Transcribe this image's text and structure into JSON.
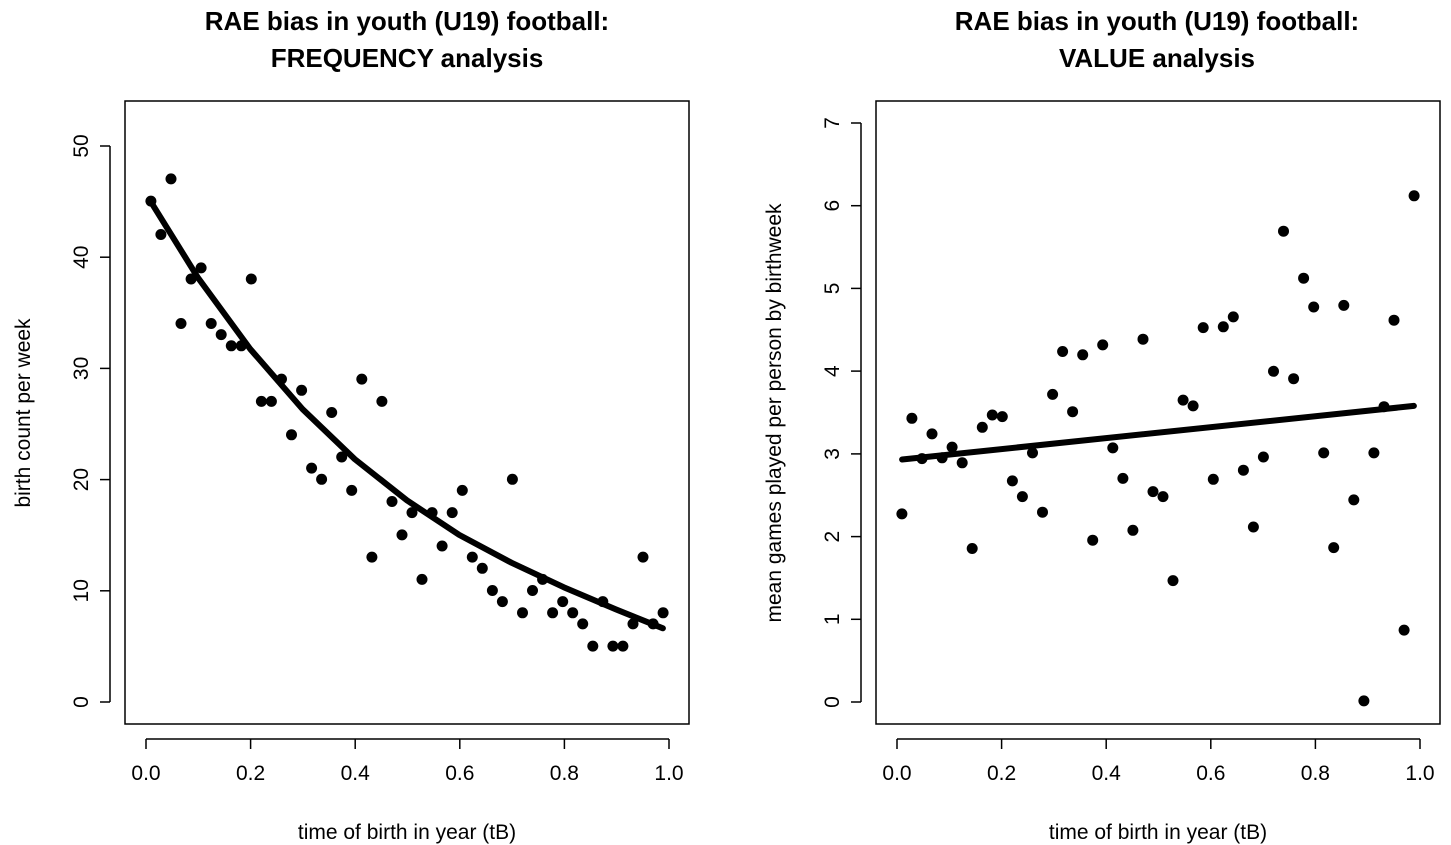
{
  "chart_data": [
    {
      "type": "scatter",
      "title": "RAE bias in youth (U19) football:",
      "subtitle": "FREQUENCY analysis",
      "xlabel": "time of birth in year (tB)",
      "ylabel": "birth count per week",
      "xlim": [
        -0.04,
        1.04
      ],
      "ylim": [
        -2,
        54
      ],
      "xticks": [
        "0.0",
        "0.2",
        "0.4",
        "0.6",
        "0.8",
        "1.0"
      ],
      "yticks": [
        "0",
        "10",
        "20",
        "30",
        "40",
        "50"
      ],
      "xtick_values": [
        0,
        0.2,
        0.4,
        0.6,
        0.8,
        1.0
      ],
      "ytick_values": [
        0,
        10,
        20,
        30,
        40,
        50
      ],
      "grid": false,
      "series": [
        {
          "kind": "points",
          "x": [
            0.0096,
            0.0288,
            0.0481,
            0.0673,
            0.0865,
            0.1058,
            0.125,
            0.1442,
            0.1635,
            0.1827,
            0.2019,
            0.2212,
            0.2404,
            0.2596,
            0.2788,
            0.2981,
            0.3173,
            0.3365,
            0.3558,
            0.375,
            0.3942,
            0.4135,
            0.4327,
            0.4519,
            0.4712,
            0.4904,
            0.5096,
            0.5288,
            0.5481,
            0.5673,
            0.5865,
            0.6058,
            0.625,
            0.6442,
            0.6635,
            0.6827,
            0.7019,
            0.7212,
            0.7404,
            0.7596,
            0.7788,
            0.7981,
            0.8173,
            0.8365,
            0.8558,
            0.875,
            0.8942,
            0.9135,
            0.9327,
            0.9519,
            0.9712,
            0.9904
          ],
          "y": [
            45,
            42,
            47,
            34,
            38,
            39,
            34,
            33,
            32,
            32,
            38,
            27,
            27,
            29,
            24,
            28,
            21,
            20,
            26,
            22,
            19,
            29,
            13,
            27,
            18,
            15,
            17,
            11,
            17,
            14,
            17,
            19,
            13,
            12,
            10,
            9,
            20,
            8,
            10,
            11,
            8,
            9,
            8,
            7,
            5,
            9,
            5,
            5,
            7,
            13,
            7,
            8
          ]
        },
        {
          "kind": "fit-curve",
          "x": [
            0.01,
            0.1,
            0.2,
            0.3,
            0.4,
            0.5,
            0.6,
            0.7,
            0.8,
            0.9,
            0.99
          ],
          "y": [
            44.9,
            38.1,
            31.7,
            26.3,
            21.8,
            18.1,
            15.0,
            12.5,
            10.3,
            8.3,
            6.6
          ]
        }
      ]
    },
    {
      "type": "scatter",
      "title": "RAE bias in youth (U19) football:",
      "subtitle": "VALUE analysis",
      "xlabel": "time of birth in year (tB)",
      "ylabel": "mean games played per person by birthweek",
      "xlim": [
        -0.04,
        1.04
      ],
      "ylim": [
        -0.28,
        7.28
      ],
      "xticks": [
        "0.0",
        "0.2",
        "0.4",
        "0.6",
        "0.8",
        "1.0"
      ],
      "yticks": [
        "0",
        "1",
        "2",
        "3",
        "4",
        "5",
        "6",
        "7"
      ],
      "xtick_values": [
        0,
        0.2,
        0.4,
        0.6,
        0.8,
        1.0
      ],
      "ytick_values": [
        0,
        1,
        2,
        3,
        4,
        5,
        6,
        7
      ],
      "grid": false,
      "series": [
        {
          "kind": "points",
          "x": [
            0.0096,
            0.0288,
            0.0481,
            0.0673,
            0.0865,
            0.1058,
            0.125,
            0.1442,
            0.1635,
            0.1827,
            0.2019,
            0.2212,
            0.2404,
            0.2596,
            0.2788,
            0.2981,
            0.3173,
            0.3365,
            0.3558,
            0.375,
            0.3942,
            0.4135,
            0.4327,
            0.4519,
            0.4712,
            0.4904,
            0.5096,
            0.5288,
            0.5481,
            0.5673,
            0.5865,
            0.6058,
            0.625,
            0.6442,
            0.6635,
            0.6827,
            0.7019,
            0.7212,
            0.7404,
            0.7596,
            0.7788,
            0.7981,
            0.8173,
            0.8365,
            0.8558,
            0.875,
            0.8942,
            0.9135,
            0.9327,
            0.9519,
            0.9712,
            0.9904
          ],
          "y": [
            2.27,
            3.43,
            2.94,
            3.24,
            2.95,
            3.08,
            2.89,
            1.85,
            3.32,
            3.47,
            3.45,
            2.67,
            2.48,
            3.01,
            2.29,
            3.72,
            4.24,
            3.51,
            4.2,
            1.95,
            4.32,
            3.07,
            2.7,
            2.07,
            4.39,
            2.54,
            2.48,
            1.46,
            3.65,
            3.58,
            4.53,
            2.69,
            4.54,
            4.66,
            2.8,
            2.11,
            2.96,
            4.0,
            5.7,
            3.91,
            5.13,
            4.78,
            3.01,
            1.86,
            4.8,
            2.44,
            0.0,
            3.01,
            3.57,
            4.62,
            0.86,
            6.13
          ]
        },
        {
          "kind": "fit-line",
          "x": [
            0.01,
            0.99
          ],
          "y": [
            2.93,
            3.58
          ]
        }
      ]
    }
  ]
}
